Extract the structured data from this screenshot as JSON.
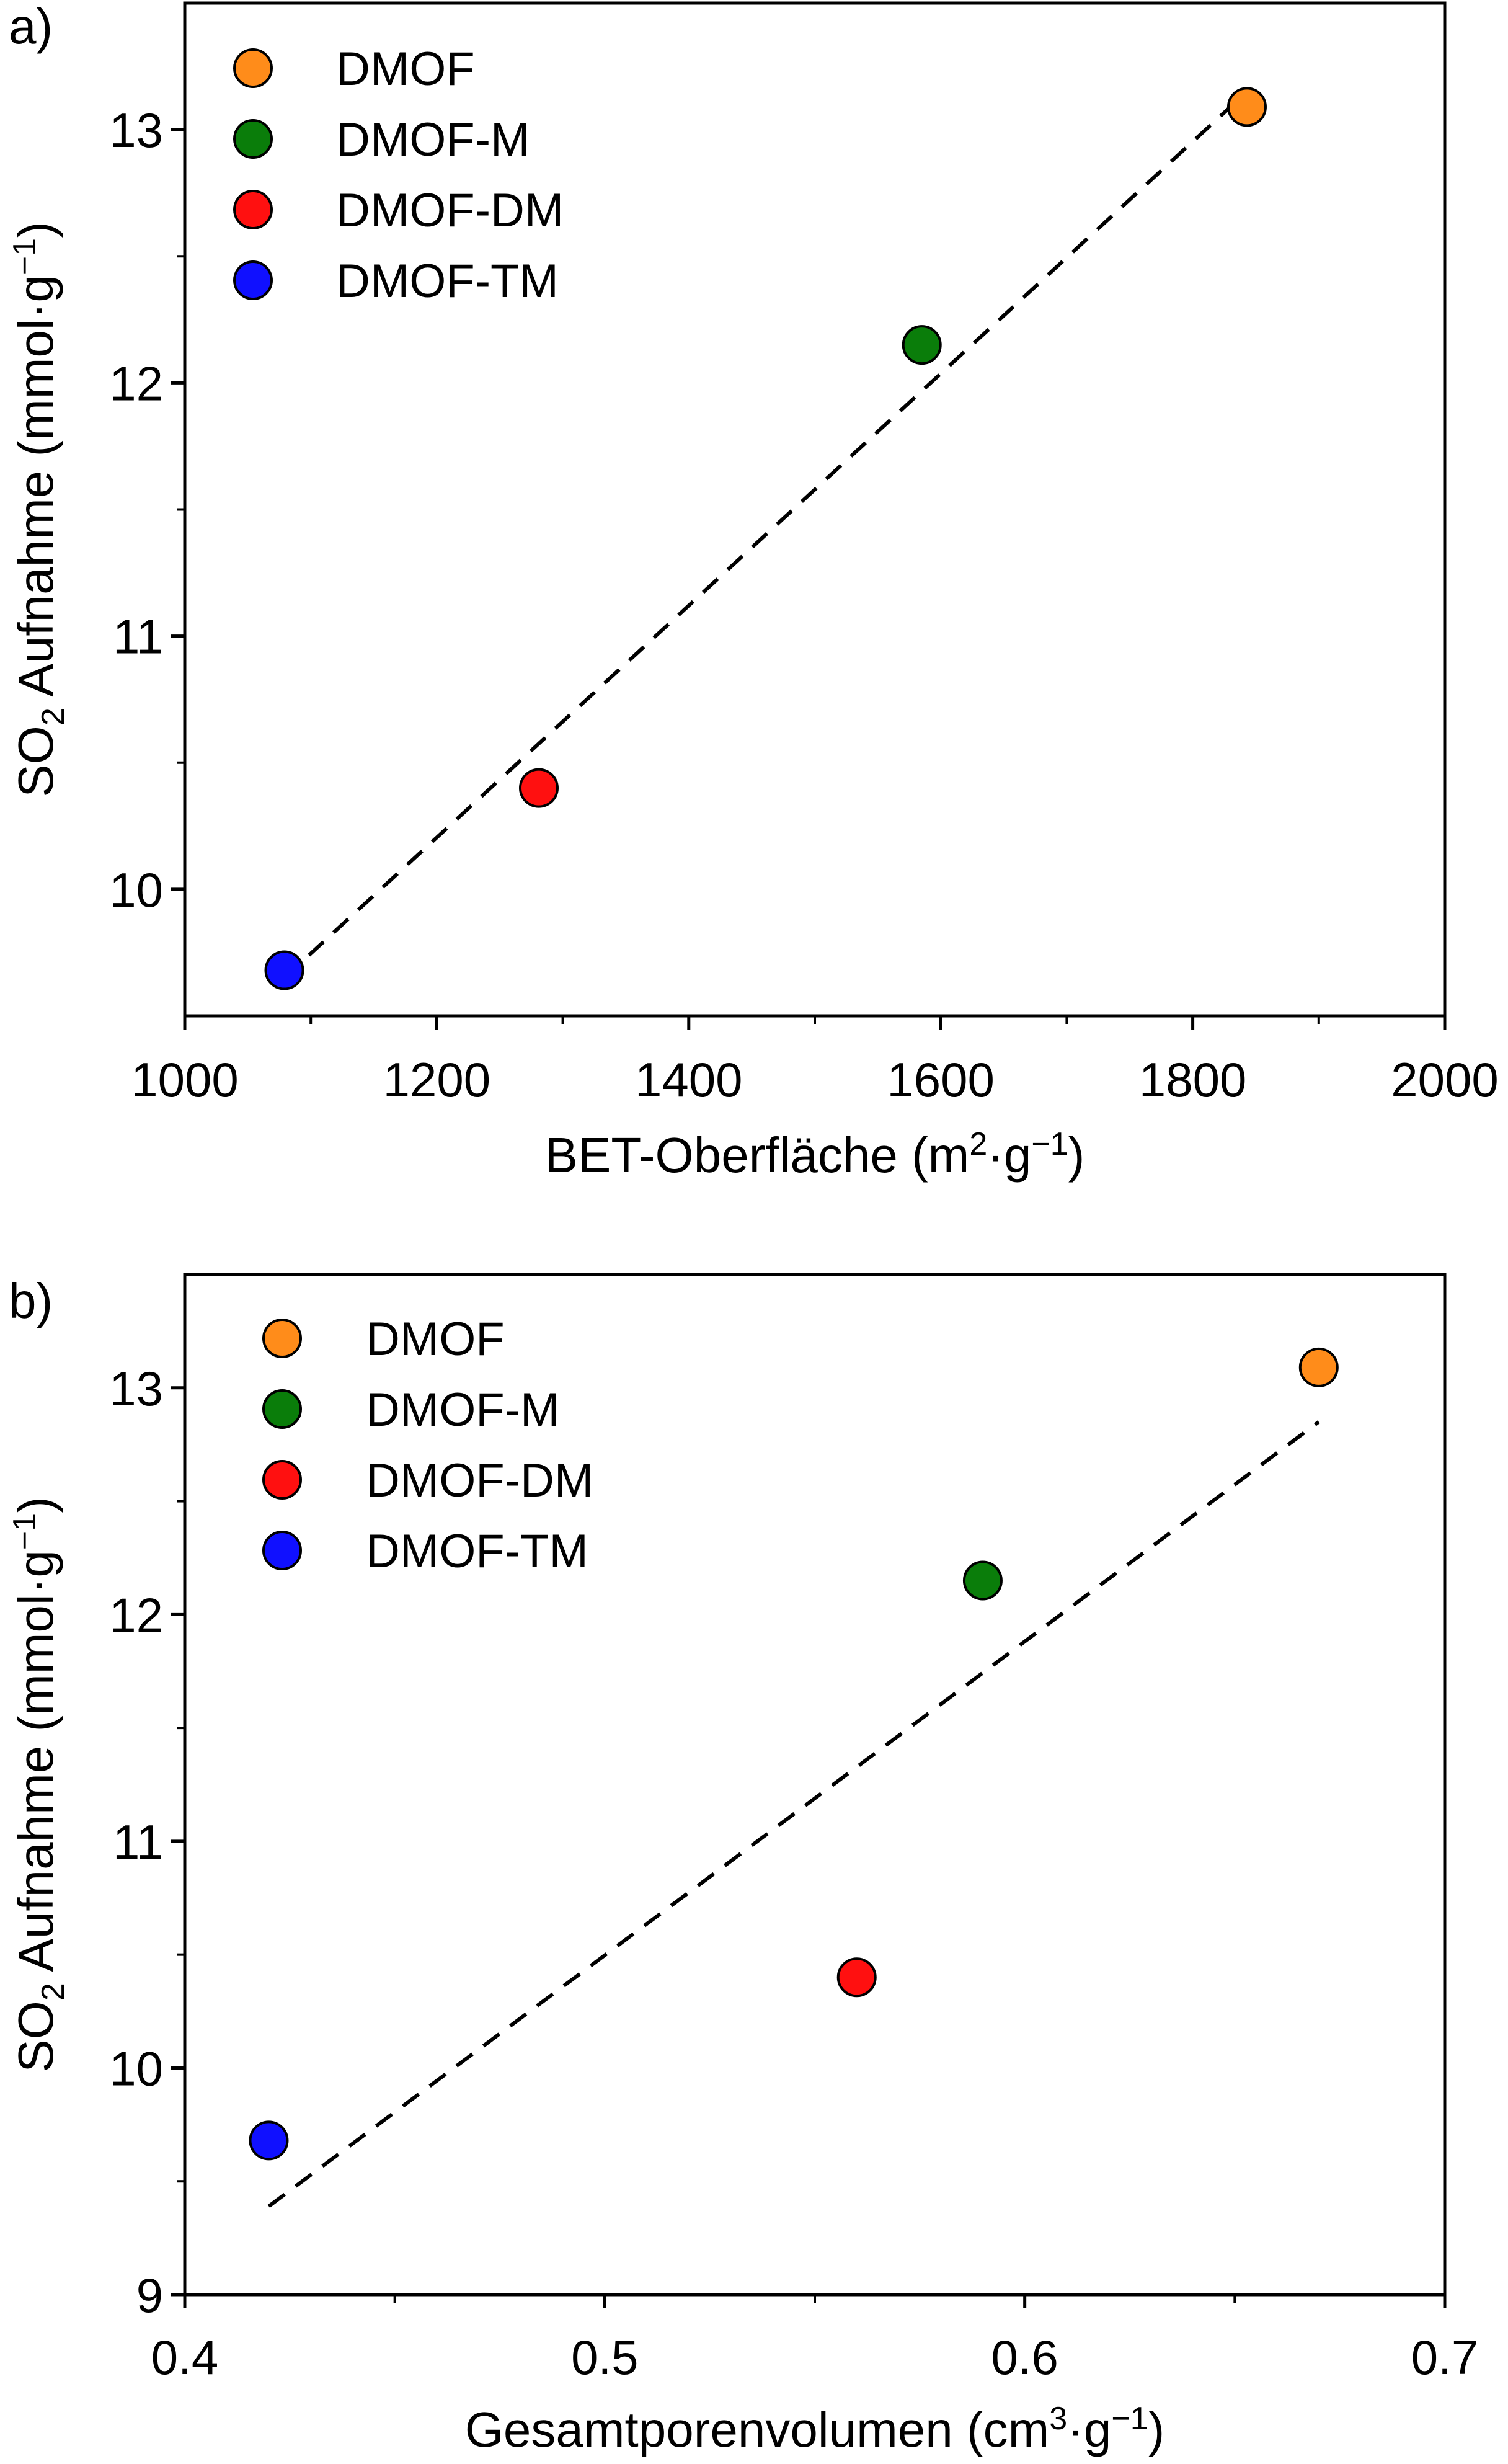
{
  "chart_data": [
    {
      "panel_label": "a)",
      "type": "scatter",
      "xlabel": {
        "prefix": "BET-Oberfläche (m",
        "sup1": "2",
        "mid": "·g",
        "sup2": "−1",
        "suffix": ")"
      },
      "ylabel": {
        "prefix": "SO",
        "sub": "2",
        "mid": " Aufnahme (mmol·g",
        "sup": "−1",
        "suffix": ")"
      },
      "xlim": [
        1000,
        2000
      ],
      "ylim": [
        9.5,
        13.5
      ],
      "xticks": [
        1000,
        1200,
        1400,
        1600,
        1800,
        2000
      ],
      "xtick_labels": [
        "1000",
        "1200",
        "1400",
        "1600",
        "1800",
        "2000"
      ],
      "yticks": [
        10,
        11,
        12,
        13
      ],
      "ytick_labels": [
        "10",
        "11",
        "12",
        "13"
      ],
      "legend_position": "top-left",
      "series": [
        {
          "name": "DMOF",
          "color": "#ff8c1a",
          "x": [
            1843
          ],
          "y": [
            13.09
          ]
        },
        {
          "name": "DMOF-M",
          "color": "#0a7d0a",
          "x": [
            1585
          ],
          "y": [
            12.15
          ]
        },
        {
          "name": "DMOF-DM",
          "color": "#ff1010",
          "x": [
            1281
          ],
          "y": [
            10.4
          ]
        },
        {
          "name": "DMOF-TM",
          "color": "#1010ff",
          "x": [
            1079
          ],
          "y": [
            9.68
          ]
        }
      ],
      "fit_line": {
        "style": "dashed",
        "x": [
          1079,
          1843
        ],
        "y": [
          9.65,
          13.15
        ]
      }
    },
    {
      "panel_label": "b)",
      "type": "scatter",
      "xlabel": {
        "prefix": "Gesamtporenvolumen (cm",
        "sup1": "3",
        "mid": "·g",
        "sup2": "−1",
        "suffix": ")"
      },
      "ylabel": {
        "prefix": "SO",
        "sub": "2",
        "mid": " Aufnahme (mmol·g",
        "sup": "−1",
        "suffix": ")"
      },
      "xlim": [
        0.4,
        0.7
      ],
      "ylim": [
        9,
        13.5
      ],
      "xticks": [
        0.4,
        0.5,
        0.6,
        0.7
      ],
      "xtick_labels": [
        "0.4",
        "0.5",
        "0.6",
        "0.7"
      ],
      "yticks": [
        9,
        10,
        11,
        12,
        13
      ],
      "ytick_labels": [
        "9",
        "10",
        "11",
        "12",
        "13"
      ],
      "legend_position": "top-left",
      "series": [
        {
          "name": "DMOF",
          "color": "#ff8c1a",
          "x": [
            0.67
          ],
          "y": [
            13.09
          ]
        },
        {
          "name": "DMOF-M",
          "color": "#0a7d0a",
          "x": [
            0.59
          ],
          "y": [
            12.15
          ]
        },
        {
          "name": "DMOF-DM",
          "color": "#ff1010",
          "x": [
            0.56
          ],
          "y": [
            10.4
          ]
        },
        {
          "name": "DMOF-TM",
          "color": "#1010ff",
          "x": [
            0.42
          ],
          "y": [
            9.68
          ]
        }
      ],
      "fit_line": {
        "style": "dashed",
        "x": [
          0.42,
          0.67
        ],
        "y": [
          9.39,
          12.85
        ]
      }
    }
  ]
}
